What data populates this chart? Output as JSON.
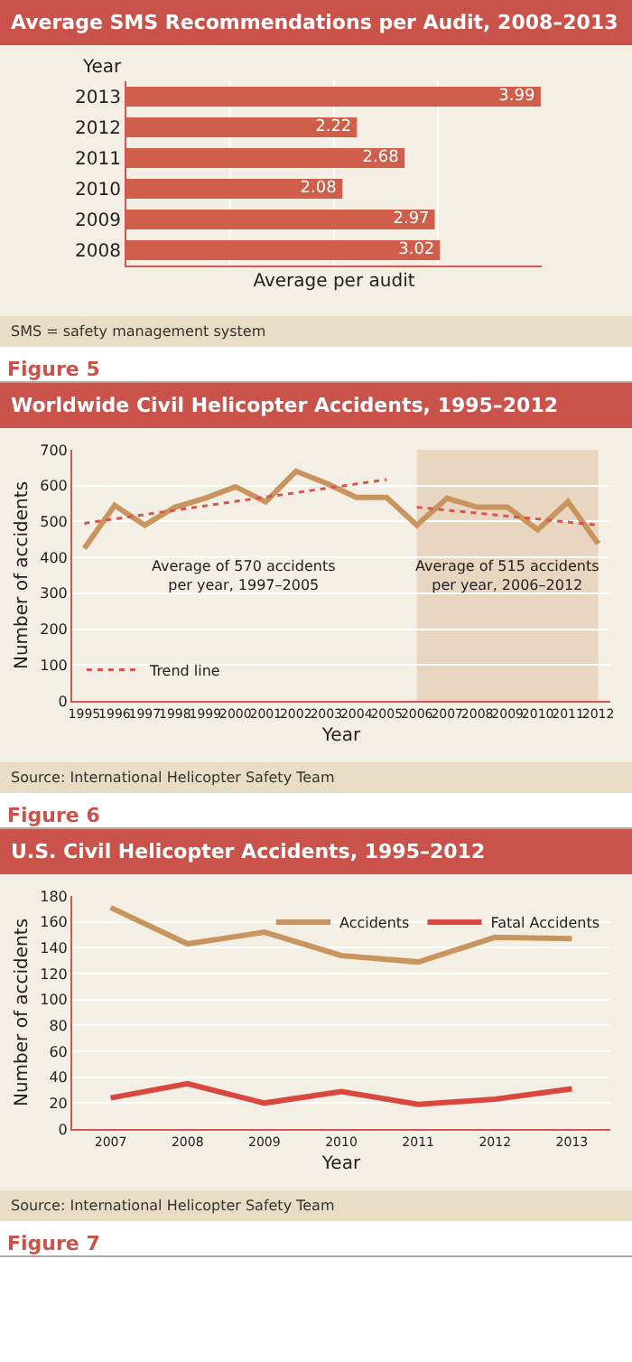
{
  "chart_data": [
    {
      "type": "bar",
      "title": "Average SMS Recommendations per Audit, 2008–2013",
      "orientation": "horizontal",
      "categories": [
        "2013",
        "2012",
        "2011",
        "2010",
        "2009",
        "2008"
      ],
      "values": [
        3.99,
        2.22,
        2.68,
        2.08,
        2.97,
        3.02
      ],
      "color": "#cf5f4a",
      "data_labels": true,
      "xlim": [
        0,
        4
      ],
      "xticks": [
        {
          "value": 1,
          "label": null
        },
        {
          "value": 2,
          "label": null
        },
        {
          "value": 3,
          "label": null
        }
      ],
      "grid": "x",
      "tick_labels": "y",
      "legend": false,
      "ylabel": "Year",
      "xlabel": "Average per audit",
      "annotations": [
        "SMS = safety management system",
        "Figure 5"
      ]
    },
    {
      "type": "line",
      "title": "Worldwide Civil Helicopter Accidents, 1995–2012",
      "x": [
        1995,
        1996,
        1997,
        1998,
        1999,
        2000,
        2001,
        2002,
        2003,
        2004,
        2005,
        2006,
        2007,
        2008,
        2009,
        2010,
        2011,
        2012
      ],
      "series": [
        {
          "color": "#c8955e",
          "values": [
            425,
            545,
            490,
            540,
            565,
            597,
            555,
            640,
            607,
            567,
            567,
            490,
            565,
            540,
            540,
            477,
            555,
            438
          ]
        },
        {
          "name": "Trend line",
          "color": "#d9534f",
          "line_style": "dotted",
          "x": [
            1995,
            2005
          ],
          "values": [
            495,
            617
          ]
        },
        {
          "color": "#d9534f",
          "line_style": "dotted",
          "x": [
            2006,
            2012
          ],
          "values": [
            540,
            490
          ]
        }
      ],
      "xlim": [
        1994.6,
        2012.4
      ],
      "xticks": [
        1995,
        1996,
        1997,
        1998,
        1999,
        2000,
        2001,
        2002,
        2003,
        2004,
        2005,
        2006,
        2007,
        2008,
        2009,
        2010,
        2011,
        2012
      ],
      "ylim": [
        0,
        700
      ],
      "yticks": [
        0,
        100,
        200,
        300,
        400,
        500,
        600,
        700
      ],
      "grid": "y",
      "legend": "bottom left",
      "xlabel": "Year",
      "ylabel": "Number of accidents",
      "bands": [
        {
          "axis": "x",
          "from": 2006,
          "to": 2012,
          "color": "#e8d6c0",
          "label": "Average of 515 accidents\nper year, 2006–2012"
        }
      ],
      "annotations": [
        "Average of 570 accidents\nper year, 1997–2005",
        "Source: International Helicopter Safety Team",
        "Figure 6"
      ]
    },
    {
      "type": "line",
      "title": "U.S. Civil Helicopter Accidents, 1995–2012",
      "categories": [
        "2007",
        "2008",
        "2009",
        "2010",
        "2011",
        "2012",
        "2013"
      ],
      "series": [
        {
          "name": "Accidents",
          "color": "#c8955e",
          "values": [
            171,
            143,
            152,
            134,
            129,
            148,
            147
          ]
        },
        {
          "name": "Fatal Accidents",
          "color": "#d9473f",
          "values": [
            24,
            35,
            20,
            29,
            19,
            23,
            31
          ]
        }
      ],
      "ylim": [
        0,
        180
      ],
      "yticks": [
        0,
        20,
        40,
        60,
        80,
        100,
        120,
        140,
        160,
        180
      ],
      "grid": "y",
      "legend": "top right",
      "xlabel": "Year",
      "ylabel": "Number of accidents",
      "annotations": [
        "Source: International Helicopter Safety Team",
        "Figure 7"
      ]
    }
  ]
}
